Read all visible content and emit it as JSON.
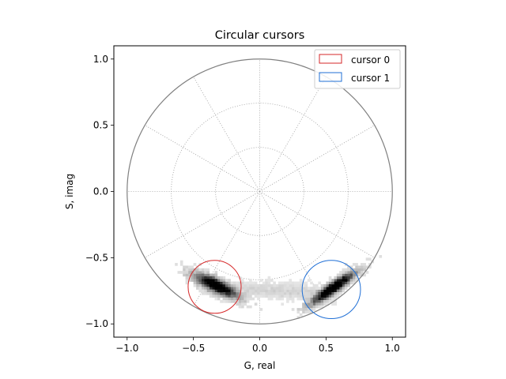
{
  "chart_data": {
    "type": "scatter",
    "title": "Circular cursors",
    "xlabel": "G, real",
    "ylabel": "S, imag",
    "xlim": [
      -1.1,
      1.1
    ],
    "ylim": [
      -1.1,
      1.1
    ],
    "xticks": [
      -1.0,
      -0.5,
      0.0,
      0.5,
      1.0
    ],
    "yticks": [
      -1.0,
      -0.5,
      0.0,
      0.5,
      1.0
    ],
    "xtick_labels": [
      "−1.0",
      "−0.5",
      "0.0",
      "0.5",
      "1.0"
    ],
    "ytick_labels": [
      "−1.0",
      "−0.5",
      "0.0",
      "0.5",
      "1.0"
    ],
    "legend_position": "top-right",
    "polar_grid": {
      "unit_circle_radius": 1.0,
      "unit_circle_color": "#808080",
      "grid_radii": [
        0.333,
        0.667
      ],
      "spoke_angles_deg": [
        0,
        30,
        60,
        90,
        120,
        150,
        180,
        210,
        240,
        270,
        300,
        330
      ],
      "grid_color": "#9a9a9a"
    },
    "cursors": [
      {
        "name": "cursor 0",
        "center": [
          -0.34,
          -0.72
        ],
        "radius": 0.2,
        "color": "#d62728"
      },
      {
        "name": "cursor 1",
        "center": [
          0.54,
          -0.74
        ],
        "radius": 0.22,
        "color": "#1f6fd6"
      }
    ],
    "histogram": {
      "colormap": "Greys",
      "clusters": [
        {
          "center": [
            -0.33,
            -0.71
          ],
          "density": "high"
        },
        {
          "center": [
            0.0,
            -0.8
          ],
          "density": "low"
        },
        {
          "center": [
            0.55,
            -0.73
          ],
          "density": "high"
        }
      ]
    }
  }
}
